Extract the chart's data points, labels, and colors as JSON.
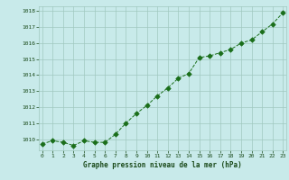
{
  "x": [
    0,
    1,
    2,
    3,
    4,
    5,
    6,
    7,
    8,
    9,
    10,
    11,
    12,
    13,
    14,
    15,
    16,
    17,
    18,
    19,
    20,
    21,
    22,
    23
  ],
  "y": [
    1009.7,
    1009.9,
    1009.8,
    1009.6,
    1009.9,
    1009.8,
    1009.8,
    1010.3,
    1011.0,
    1011.6,
    1012.1,
    1012.7,
    1013.2,
    1013.8,
    1014.1,
    1015.1,
    1015.2,
    1015.4,
    1015.6,
    1016.0,
    1016.2,
    1016.7,
    1017.2,
    1017.9
  ],
  "ylim": [
    1009.3,
    1018.3
  ],
  "yticks": [
    1010,
    1011,
    1012,
    1013,
    1014,
    1015,
    1016,
    1017,
    1018
  ],
  "xticks": [
    0,
    1,
    2,
    3,
    4,
    5,
    6,
    7,
    8,
    9,
    10,
    11,
    12,
    13,
    14,
    15,
    16,
    17,
    18,
    19,
    20,
    21,
    22,
    23
  ],
  "xlabel": "Graphe pression niveau de la mer (hPa)",
  "line_color": "#1a6e1a",
  "marker": "D",
  "bg_color": "#c8eaea",
  "grid_color": "#a0c8c0",
  "tick_label_color": "#1a4a1a",
  "xlabel_color": "#1a4a1a"
}
